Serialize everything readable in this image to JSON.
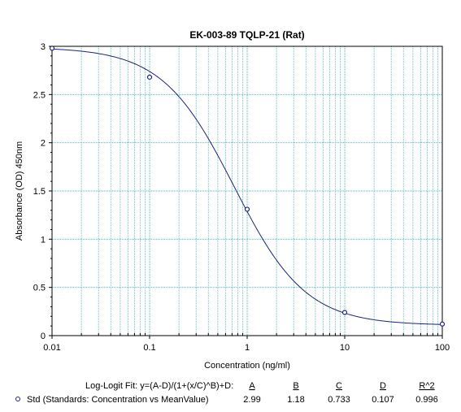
{
  "chart_data": {
    "type": "scatter",
    "title": "EK-003-89 TQLP-21 (Rat)",
    "xlabel": "Concentration (ng/ml)",
    "ylabel": "Absorbance (OD) 450nm",
    "x_scale": "log",
    "xlim": [
      0.01,
      100
    ],
    "ylim": [
      0,
      3
    ],
    "x_ticks": [
      "0.01",
      "0.1",
      "1",
      "10",
      "100"
    ],
    "y_ticks": [
      "0",
      "0.5",
      "1",
      "1.5",
      "2",
      "2.5",
      "3"
    ],
    "grid": true,
    "colors": {
      "curve": "#1a237e",
      "points": "#1a237e",
      "grid": "#4fb8c4",
      "axis": "#000000"
    },
    "series": [
      {
        "name": "Std (Standards: Concentration vs MeanValue)",
        "x": [
          0.01,
          0.1,
          1,
          10,
          100
        ],
        "y": [
          2.98,
          2.68,
          1.31,
          0.24,
          0.12
        ]
      }
    ],
    "fit": {
      "label": "Log-Logit Fit: y=(A-D)/(1+(x/C)^B)+D:",
      "A": 2.99,
      "B": 1.18,
      "C": 0.733,
      "D": 0.107
    }
  },
  "legend": {
    "fit_label": "Log-Logit Fit: y=(A-D)/(1+(x/C)^B)+D:",
    "series_label": "Std (Standards: Concentration vs MeanValue)",
    "headers": [
      "A",
      "B",
      "C",
      "D",
      "R^2"
    ],
    "values": [
      "2.99",
      "1.18",
      "0.733",
      "0.107",
      "0.996"
    ]
  }
}
